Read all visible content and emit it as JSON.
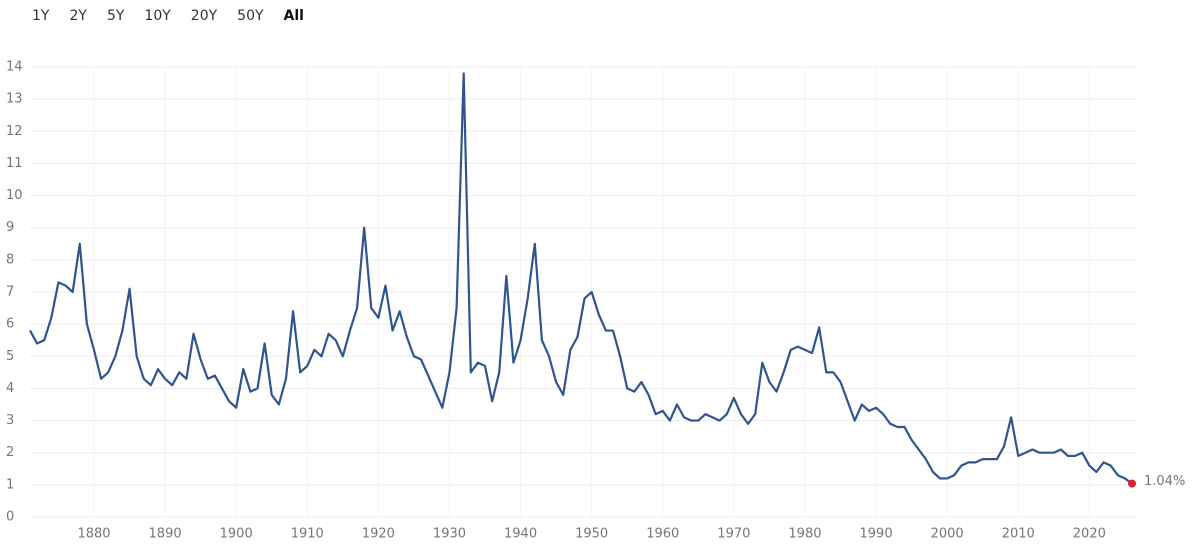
{
  "range_buttons": [
    "1Y",
    "2Y",
    "5Y",
    "10Y",
    "20Y",
    "50Y",
    "All"
  ],
  "selected_range": "All",
  "chart_data": {
    "type": "line",
    "grid": true,
    "x": [
      1871,
      1872,
      1873,
      1874,
      1875,
      1876,
      1877,
      1878,
      1879,
      1880,
      1881,
      1882,
      1883,
      1884,
      1885,
      1886,
      1887,
      1888,
      1889,
      1890,
      1891,
      1892,
      1893,
      1894,
      1895,
      1896,
      1897,
      1898,
      1899,
      1900,
      1901,
      1902,
      1903,
      1904,
      1905,
      1906,
      1907,
      1908,
      1909,
      1910,
      1911,
      1912,
      1913,
      1914,
      1915,
      1916,
      1917,
      1918,
      1919,
      1920,
      1921,
      1922,
      1923,
      1924,
      1925,
      1926,
      1927,
      1928,
      1929,
      1930,
      1931,
      1932,
      1933,
      1934,
      1935,
      1936,
      1937,
      1938,
      1939,
      1940,
      1941,
      1942,
      1943,
      1944,
      1945,
      1946,
      1947,
      1948,
      1949,
      1950,
      1951,
      1952,
      1953,
      1954,
      1955,
      1956,
      1957,
      1958,
      1959,
      1960,
      1961,
      1962,
      1963,
      1964,
      1965,
      1966,
      1967,
      1968,
      1969,
      1970,
      1971,
      1972,
      1973,
      1974,
      1975,
      1976,
      1977,
      1978,
      1979,
      1980,
      1981,
      1982,
      1983,
      1984,
      1985,
      1986,
      1987,
      1988,
      1989,
      1990,
      1991,
      1992,
      1993,
      1994,
      1995,
      1996,
      1997,
      1998,
      1999,
      2000,
      2001,
      2002,
      2003,
      2004,
      2005,
      2006,
      2007,
      2008,
      2009,
      2010,
      2011,
      2012,
      2013,
      2014,
      2015,
      2016,
      2017,
      2018,
      2019,
      2020,
      2021,
      2022,
      2023,
      2024,
      2025,
      2026
    ],
    "series": [
      {
        "color": "#2f5590",
        "values": [
          5.8,
          5.4,
          5.5,
          6.2,
          7.3,
          7.2,
          7.0,
          8.5,
          6.0,
          5.2,
          4.3,
          4.5,
          5.0,
          5.8,
          7.1,
          5.0,
          4.3,
          4.1,
          4.6,
          4.3,
          4.1,
          4.5,
          4.3,
          5.7,
          4.9,
          4.3,
          4.4,
          4.0,
          3.6,
          3.4,
          4.6,
          3.9,
          4.0,
          5.4,
          3.8,
          3.5,
          4.3,
          6.4,
          4.5,
          4.7,
          5.2,
          5.0,
          5.7,
          5.5,
          5.0,
          5.8,
          6.5,
          9.0,
          6.5,
          6.2,
          7.2,
          5.8,
          6.4,
          5.6,
          5.0,
          4.9,
          4.4,
          3.9,
          3.4,
          4.5,
          6.5,
          13.8,
          4.5,
          4.8,
          4.7,
          3.6,
          4.5,
          7.5,
          4.8,
          5.5,
          6.8,
          8.5,
          5.5,
          5.0,
          4.2,
          3.8,
          5.2,
          5.6,
          6.8,
          7.0,
          6.3,
          5.8,
          5.8,
          5.0,
          4.0,
          3.9,
          4.2,
          3.8,
          3.2,
          3.3,
          3.0,
          3.5,
          3.1,
          3.0,
          3.0,
          3.2,
          3.1,
          3.0,
          3.2,
          3.7,
          3.2,
          2.9,
          3.2,
          4.8,
          4.2,
          3.9,
          4.5,
          5.2,
          5.3,
          5.2,
          5.1,
          5.9,
          4.5,
          4.5,
          4.2,
          3.6,
          3.0,
          3.5,
          3.3,
          3.4,
          3.2,
          2.9,
          2.8,
          2.8,
          2.4,
          2.1,
          1.8,
          1.4,
          1.2,
          1.2,
          1.3,
          1.6,
          1.7,
          1.7,
          1.8,
          1.8,
          1.8,
          2.2,
          3.1,
          1.9,
          2.0,
          2.1,
          2.0,
          2.0,
          2.0,
          2.1,
          1.9,
          1.9,
          2.0,
          1.6,
          1.4,
          1.7,
          1.6,
          1.3,
          1.2,
          1.04
        ],
        "value_labels": [
          null,
          null,
          null,
          null,
          null,
          null,
          null,
          null,
          null,
          null,
          null,
          null,
          null,
          null,
          null,
          null,
          null,
          null,
          null,
          null,
          null,
          null,
          null,
          null,
          null,
          null,
          null,
          null,
          null,
          null,
          null,
          null,
          null,
          null,
          null,
          null,
          null,
          null,
          null,
          null,
          null,
          null,
          null,
          null,
          null,
          null,
          null,
          null,
          null,
          null,
          null,
          null,
          null,
          null,
          null,
          null,
          null,
          null,
          null,
          null,
          null,
          null,
          null,
          null,
          null,
          null,
          null,
          null,
          null,
          null,
          null,
          null,
          null,
          null,
          null,
          null,
          null,
          null,
          null,
          null,
          null,
          null,
          null,
          null,
          null,
          null,
          null,
          null,
          null,
          null,
          null,
          null,
          null,
          null,
          null,
          null,
          null,
          null,
          null,
          null,
          null,
          null,
          null,
          null,
          null,
          null,
          null,
          null,
          null,
          null,
          null,
          null,
          null,
          null,
          null,
          null,
          null,
          null,
          null,
          null,
          null,
          null,
          null,
          null,
          null,
          null,
          null,
          null,
          null,
          null,
          null,
          null,
          null,
          null,
          null,
          null,
          null,
          null,
          null,
          null,
          null,
          null,
          null,
          null,
          null,
          null,
          null,
          null,
          null,
          null,
          null,
          null,
          null,
          null,
          null,
          "1.04%"
        ]
      }
    ],
    "last_point_color": "#e0202a",
    "xlim": [
      1871,
      2026
    ],
    "xticks": [
      1880,
      1890,
      1900,
      1910,
      1920,
      1930,
      1940,
      1950,
      1960,
      1970,
      1980,
      1990,
      2000,
      2010,
      2020
    ],
    "ylim": [
      0,
      14
    ],
    "yticks": [
      0,
      1,
      2,
      3,
      4,
      5,
      6,
      7,
      8,
      9,
      10,
      11,
      12,
      13,
      14
    ]
  }
}
